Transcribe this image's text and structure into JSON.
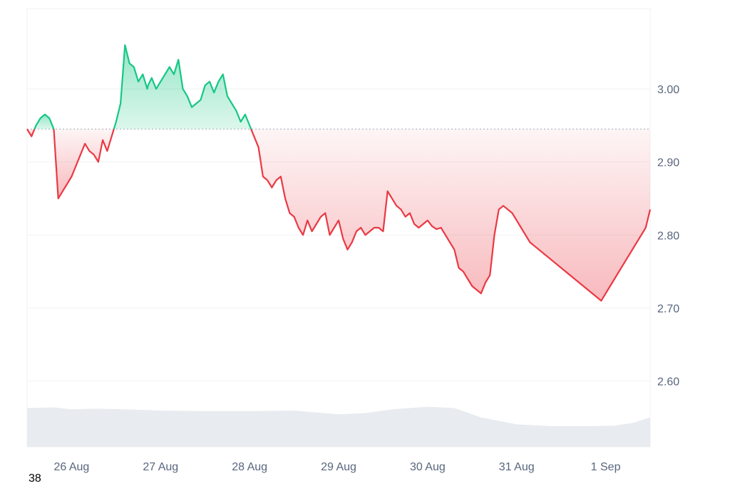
{
  "corner_label": "38",
  "chart_data": {
    "type": "area",
    "title": "",
    "xlabel": "",
    "ylabel": "",
    "x_tick_labels": [
      "26 Aug",
      "27 Aug",
      "28 Aug",
      "29 Aug",
      "30 Aug",
      "31 Aug",
      "1 Sep"
    ],
    "y_tick_labels": [
      "3.00",
      "2.90",
      "2.80",
      "2.70",
      "2.60"
    ],
    "y_ticks": [
      3.0,
      2.9,
      2.8,
      2.7,
      2.6
    ],
    "ylim": [
      2.51,
      3.11
    ],
    "xlim": [
      -0.5,
      6.5
    ],
    "baseline": 2.945,
    "grid": true,
    "colors": {
      "up": "#16c784",
      "down": "#ea3943",
      "volume": "#e8ebef",
      "grid": "#eff2f5",
      "axis_text": "#58667e"
    },
    "price_series": {
      "x": [
        -0.5,
        -0.45,
        -0.4,
        -0.35,
        -0.3,
        -0.25,
        -0.2,
        -0.15,
        -0.1,
        -0.05,
        0.0,
        0.05,
        0.1,
        0.15,
        0.2,
        0.25,
        0.3,
        0.35,
        0.4,
        0.45,
        0.5,
        0.55,
        0.6,
        0.65,
        0.7,
        0.75,
        0.8,
        0.85,
        0.86,
        0.9,
        0.95,
        1.0,
        1.05,
        1.1,
        1.15,
        1.2,
        1.25,
        1.3,
        1.35,
        1.4,
        1.45,
        1.5,
        1.55,
        1.6,
        1.65,
        1.7,
        1.75,
        1.8,
        1.85,
        1.9,
        1.95,
        2.0,
        2.05,
        2.1,
        2.15,
        2.2,
        2.25,
        2.3,
        2.35,
        2.4,
        2.45,
        2.5,
        2.55,
        2.6,
        2.65,
        2.7,
        2.75,
        2.8,
        2.85,
        2.9,
        2.95,
        3.0,
        3.05,
        3.1,
        3.15,
        3.2,
        3.25,
        3.3,
        3.35,
        3.4,
        3.45,
        3.5,
        3.55,
        3.6,
        3.65,
        3.7,
        3.75,
        3.8,
        3.85,
        3.9,
        3.95,
        4.0,
        4.05,
        4.1,
        4.15,
        4.2,
        4.25,
        4.3,
        4.35,
        4.4,
        4.45,
        4.5,
        4.55,
        4.6,
        4.65,
        4.7,
        4.75,
        4.8,
        4.85,
        4.9,
        4.95,
        5.0,
        5.05,
        5.1,
        5.15,
        5.2,
        5.25,
        5.3,
        5.35,
        5.4,
        5.45,
        5.5,
        5.55,
        5.6,
        5.65,
        5.7,
        5.75,
        5.8,
        5.85,
        5.9,
        5.95,
        6.0,
        6.05,
        6.1,
        6.15,
        6.2,
        6.25,
        6.3,
        6.35,
        6.4,
        6.45,
        6.5
      ],
      "y": [
        2.945,
        2.935,
        2.95,
        2.96,
        2.965,
        2.96,
        2.945,
        2.85,
        2.86,
        2.87,
        2.88,
        2.895,
        2.91,
        2.925,
        2.915,
        2.91,
        2.9,
        2.93,
        2.915,
        2.935,
        2.955,
        2.98,
        3.06,
        3.035,
        3.03,
        3.01,
        3.02,
        3.0,
        3.005,
        3.015,
        3.0,
        3.01,
        3.02,
        3.03,
        3.02,
        3.04,
        3.0,
        2.99,
        2.975,
        2.98,
        2.985,
        3.005,
        3.01,
        2.995,
        3.01,
        3.02,
        2.99,
        2.98,
        2.97,
        2.955,
        2.965,
        2.95,
        2.935,
        2.92,
        2.88,
        2.875,
        2.865,
        2.875,
        2.88,
        2.85,
        2.83,
        2.825,
        2.81,
        2.8,
        2.82,
        2.805,
        2.815,
        2.825,
        2.83,
        2.8,
        2.81,
        2.82,
        2.795,
        2.78,
        2.79,
        2.805,
        2.81,
        2.8,
        2.805,
        2.81,
        2.81,
        2.805,
        2.86,
        2.85,
        2.84,
        2.835,
        2.825,
        2.83,
        2.815,
        2.81,
        2.815,
        2.82,
        2.812,
        2.808,
        2.81,
        2.8,
        2.79,
        2.78,
        2.755,
        2.75,
        2.74,
        2.73,
        2.725,
        2.72,
        2.735,
        2.745,
        2.8,
        2.835,
        2.84,
        2.835,
        2.83,
        2.82,
        2.81,
        2.8,
        2.79,
        2.785,
        2.78,
        2.775,
        2.77,
        2.765,
        2.76,
        2.755,
        2.75,
        2.745,
        2.74,
        2.735,
        2.73,
        2.725,
        2.72,
        2.715,
        2.71,
        2.72,
        2.73,
        2.74,
        2.75,
        2.76,
        2.77,
        2.78,
        2.79,
        2.8,
        2.81,
        2.835
      ]
    },
    "volume_series": {
      "x": [
        -0.5,
        -0.2,
        0.0,
        0.3,
        0.6,
        1.0,
        1.5,
        2.0,
        2.5,
        3.0,
        3.3,
        3.6,
        4.0,
        4.3,
        4.6,
        5.0,
        5.4,
        5.8,
        6.1,
        6.3,
        6.5
      ],
      "y": [
        0.62,
        0.63,
        0.6,
        0.61,
        0.6,
        0.58,
        0.57,
        0.57,
        0.58,
        0.52,
        0.54,
        0.6,
        0.64,
        0.62,
        0.47,
        0.36,
        0.33,
        0.33,
        0.34,
        0.38,
        0.47
      ]
    }
  }
}
